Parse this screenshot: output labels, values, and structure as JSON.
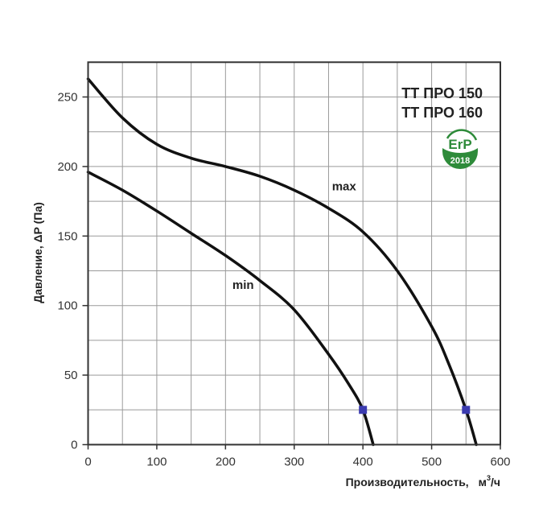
{
  "chart_data": {
    "type": "line",
    "title": "",
    "models": [
      "ТТ ПРО 150",
      "ТТ ПРО 160"
    ],
    "xlabel": "Производительность,  м³/ч",
    "xlabel_main": "Производительность,",
    "xlabel_unit_base": "м",
    "xlabel_unit_sup": "3",
    "xlabel_unit_tail": "/ч",
    "ylabel": "Давление, ΔP (Па)",
    "xlim": [
      0,
      600
    ],
    "ylim": [
      0,
      275
    ],
    "x_ticks": [
      0,
      100,
      200,
      300,
      400,
      500,
      600
    ],
    "y_ticks": [
      0,
      50,
      100,
      150,
      200,
      250
    ],
    "x_grid_step": 50,
    "y_grid_step": 25,
    "grid": true,
    "legend": "none",
    "badge": {
      "text": "ErP",
      "year": "2018",
      "color": "#2e8b3a"
    },
    "series": [
      {
        "name": "max",
        "x": [
          0,
          50,
          100,
          150,
          200,
          250,
          300,
          350,
          400,
          450,
          500,
          525,
          550,
          565
        ],
        "y": [
          263,
          235,
          216,
          206,
          200,
          193,
          183,
          170,
          153,
          125,
          85,
          58,
          25,
          0
        ],
        "marker": {
          "x": 550,
          "y": 25
        },
        "label_pos": {
          "x": 355,
          "y": 183
        }
      },
      {
        "name": "min",
        "x": [
          0,
          50,
          100,
          150,
          200,
          250,
          300,
          350,
          380,
          400,
          415
        ],
        "y": [
          196,
          183,
          168,
          152,
          136,
          118,
          97,
          65,
          43,
          25,
          0
        ],
        "marker": {
          "x": 400,
          "y": 25
        },
        "label_pos": {
          "x": 210,
          "y": 112
        }
      }
    ],
    "colors": {
      "curve": "#111111",
      "marker": "#3b3bb0",
      "grid": "#9a9a9a",
      "frame": "#333333"
    }
  }
}
